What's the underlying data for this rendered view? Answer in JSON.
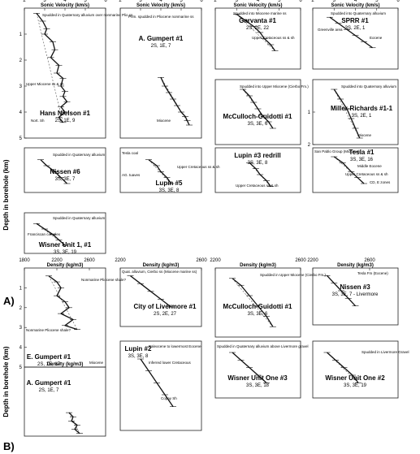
{
  "section_a_label": "A)",
  "section_b_label": "B)",
  "y_axis_label": "Depth in borehole (km)",
  "colors": {
    "trace": "#111111",
    "frame": "#222222",
    "trend": "#555555",
    "grid": "#cfcfcf"
  },
  "chart_data": [
    {
      "type": "line",
      "panel": "A-1",
      "title": "Sonic Velocity (km/s)",
      "well": "Hans Nielson #1",
      "location": "2S, 1E, 9",
      "xlim": [
        2,
        6
      ],
      "ylim": [
        0,
        5
      ],
      "xticks": [
        2,
        3,
        4,
        5,
        6
      ],
      "yticks": [
        1,
        2,
        3,
        4,
        5
      ],
      "annotations": [
        "Spudded in Quaternary alluvium over nonmarine Plio ss",
        "Upper Miocene ss & sh",
        "Nort. Sh"
      ],
      "x": [
        2.6,
        2.9,
        3.1,
        3.0,
        3.4,
        3.5,
        3.3,
        3.7,
        3.6,
        3.9,
        3.8,
        4.0,
        3.9,
        4.1,
        3.8,
        4.0,
        3.7,
        3.9
      ],
      "y": [
        0.2,
        0.5,
        0.8,
        1.0,
        1.3,
        1.6,
        1.9,
        2.2,
        2.5,
        2.7,
        3.0,
        3.2,
        3.4,
        3.6,
        3.8,
        4.0,
        4.2,
        4.4
      ]
    },
    {
      "type": "line",
      "panel": "A-2",
      "title": "Sonic Velocity (km/s)",
      "well": "A. Gumpert #1",
      "location": "2S, 1E, 7",
      "xlim": [
        2,
        6
      ],
      "ylim": [
        0,
        6
      ],
      "xticks": [
        2,
        3,
        4,
        5,
        6
      ],
      "yticks": [],
      "annotations": [
        "Prim. spudded in Pliocene nonmarine ss",
        "Miocene"
      ],
      "x": [
        4.0,
        4.2,
        4.4,
        4.6,
        4.8,
        5.0,
        5.2,
        5.3,
        5.4
      ],
      "y": [
        3.2,
        3.6,
        3.9,
        4.2,
        4.5,
        4.8,
        5.0,
        5.2,
        5.4
      ]
    },
    {
      "type": "line",
      "panel": "A-3",
      "title": "Sonic Velocity (km/s)",
      "well": "Garvanta #1",
      "location": "2S, 2E, 22",
      "xlim": [
        2,
        6
      ],
      "ylim": [
        0,
        2
      ],
      "xticks": [
        2,
        3,
        4,
        5,
        6
      ],
      "yticks": [],
      "annotations": [
        "Spudded into Miocene marine ss",
        "Upper Cretaceous ss & sh"
      ],
      "x": [
        3.0,
        3.4,
        3.8,
        4.1,
        4.3,
        4.6,
        4.8
      ],
      "y": [
        0.2,
        0.4,
        0.6,
        0.8,
        1.0,
        1.2,
        1.4
      ]
    },
    {
      "type": "line",
      "panel": "A-4",
      "title": "Sonic Velocity (km/s)",
      "well": "SPRR #1",
      "location": "3S, 2E, 1",
      "xlim": [
        2,
        6
      ],
      "ylim": [
        0,
        2
      ],
      "xticks": [
        2,
        3,
        4,
        5,
        6
      ],
      "yticks": [],
      "annotations": [
        "Spudded into Quaternary alluvium",
        "Greenville area",
        "Eocene"
      ],
      "x": [
        2.8,
        3.2,
        3.6,
        4.0,
        4.4,
        4.8
      ],
      "y": [
        0.3,
        0.5,
        0.7,
        0.9,
        1.1,
        1.3
      ]
    },
    {
      "type": "line",
      "panel": "A-5",
      "title": "",
      "well": "McCulloch-Guidotti #1",
      "location": "3S, 3E, 6",
      "xlim": [
        2,
        6
      ],
      "ylim": [
        0,
        2
      ],
      "xticks": [],
      "yticks": [],
      "annotations": [
        "Spudded into Upper Miocene (Cierbo Fm.)"
      ],
      "x": [
        3.3,
        3.6,
        3.8,
        4.0,
        4.2,
        4.5,
        4.7
      ],
      "y": [
        0.3,
        0.5,
        0.7,
        0.9,
        1.1,
        1.3,
        1.5
      ]
    },
    {
      "type": "line",
      "panel": "A-6",
      "title": "",
      "well": "Miller-Richards #1-1",
      "location": "3S, 2E, 1",
      "xlim": [
        2,
        6
      ],
      "ylim": [
        0,
        2
      ],
      "xticks": [],
      "yticks": [
        1,
        2
      ],
      "annotations": [
        "Spudded into Quaternary alluvium",
        "Miocene"
      ],
      "x": [
        3.0,
        3.3,
        3.6,
        3.8,
        4.0,
        4.2
      ],
      "y": [
        0.3,
        0.6,
        0.9,
        1.2,
        1.5,
        1.8
      ]
    },
    {
      "type": "line",
      "panel": "A-7",
      "title": "",
      "well": "Nissen #6",
      "location": "3S, 3E, 7",
      "xlim": [
        2,
        6
      ],
      "ylim": [
        0,
        1.5
      ],
      "xticks": [],
      "yticks": [],
      "annotations": [
        "Spudded in Quaternary alluvium"
      ],
      "x": [
        2.8,
        3.1,
        3.5,
        3.8,
        4.1
      ],
      "y": [
        0.4,
        0.6,
        0.8,
        1.0,
        1.2
      ]
    },
    {
      "type": "line",
      "panel": "A-8",
      "title": "",
      "well": "Lupin #5",
      "location": "3S, 3E, 8",
      "xlim": [
        2,
        6
      ],
      "ylim": [
        0,
        1.5
      ],
      "xticks": [],
      "yticks": [],
      "annotations": [
        "Tesla coal",
        "AG. tuaves",
        "Upper Cretaceous ss & sh"
      ],
      "x": [
        3.4,
        3.8,
        4.0,
        4.3,
        4.5
      ],
      "y": [
        0.4,
        0.6,
        0.8,
        1.0,
        1.2
      ]
    },
    {
      "type": "line",
      "panel": "A-9",
      "title": "",
      "well": "Lupin #3 redrill",
      "location": "3S, 3E, 8",
      "xlim": [
        2,
        6
      ],
      "ylim": [
        0,
        1.5
      ],
      "xticks": [],
      "yticks": [],
      "annotations": [
        "Upper Cretaceous ss & sh"
      ],
      "x": [
        3.6,
        3.9,
        4.1,
        4.4,
        4.6
      ],
      "y": [
        0.5,
        0.7,
        0.9,
        1.1,
        1.3
      ]
    },
    {
      "type": "line",
      "panel": "A-10",
      "title": "",
      "well": "Tesla #1",
      "location": "3S, 3E, 16",
      "xlim": [
        2,
        6
      ],
      "ylim": [
        0,
        1.5
      ],
      "xticks": [],
      "yticks": [],
      "annotations": [
        "San Pablo Group (Miocene)",
        "Middle Eocene",
        "Upper Cretaceous ss & sh",
        "CD, E zones"
      ],
      "x": [
        3.0,
        3.4,
        3.8,
        4.1,
        4.4
      ],
      "y": [
        0.3,
        0.5,
        0.8,
        1.0,
        1.2
      ]
    },
    {
      "type": "line",
      "panel": "A-11",
      "title": "",
      "well": "Wisner Unit 1, #1",
      "location": "3S, 3E, 19",
      "xlim": [
        2,
        6
      ],
      "ylim": [
        0,
        1.5
      ],
      "xticks": [],
      "yticks": [],
      "annotations": [
        "Spudded in Quaternary alluvium",
        "Franciscan complex"
      ],
      "x": [
        2.6,
        3.0,
        3.4,
        3.7,
        4.0
      ],
      "y": [
        0.4,
        0.6,
        0.8,
        1.0,
        1.2
      ]
    },
    {
      "type": "line",
      "panel": "B-1",
      "title": "Density (kg/m3)",
      "well": "E. Gumpert #1",
      "location": "2S, 1E, 17",
      "xlim": [
        1800,
        2800
      ],
      "ylim": [
        0,
        5
      ],
      "xticks": [
        1800,
        2200,
        2600
      ],
      "yticks": [
        1,
        2,
        3,
        4,
        5
      ],
      "annotations": [
        "Nonmarine Pliocene shale?",
        "Nonmarine Pliocene shale?",
        "Miocene"
      ],
      "x": [
        2100,
        2200,
        2250,
        2200,
        2300,
        2350,
        2250,
        2400,
        2300,
        2450
      ],
      "y": [
        0.4,
        0.7,
        1.0,
        1.4,
        1.7,
        2.0,
        2.3,
        2.6,
        2.9,
        3.1
      ]
    },
    {
      "type": "line",
      "panel": "B-2",
      "title": "Density (kg/m3)",
      "well": "A. Gumpert #1",
      "location": "2S, 1E, 7",
      "xlim": [
        1800,
        2800
      ],
      "ylim": [
        0,
        5
      ],
      "xticks": [],
      "yticks": [],
      "annotations": [],
      "x": [
        2350,
        2400,
        2380,
        2450,
        2420,
        2480
      ],
      "y": [
        3.3,
        3.6,
        3.9,
        4.2,
        4.5,
        4.8
      ]
    },
    {
      "type": "line",
      "panel": "B-3",
      "title": "Density (kg/m3)",
      "well": "City of Livermore #1",
      "location": "2S, 2E, 27",
      "xlim": [
        2200,
        2600
      ],
      "ylim": [
        0,
        1.5
      ],
      "xticks": [
        2200,
        2600
      ],
      "yticks": [],
      "annotations": [
        "Quat. alluvium, Cierbo ss (Miocene marine ss)"
      ],
      "x": [
        2250,
        2300,
        2350,
        2400,
        2450
      ],
      "y": [
        0.2,
        0.4,
        0.6,
        0.8,
        1.0
      ]
    },
    {
      "type": "line",
      "panel": "B-4",
      "title": "Density (kg/m3)",
      "well": "McCulloch-Guidotti #1",
      "location": "3S, 3E, 6",
      "xlim": [
        2200,
        2600
      ],
      "ylim": [
        0,
        2
      ],
      "xticks": [
        2200,
        2600
      ],
      "yticks": [],
      "annotations": [
        "Spudded in Upper Miocene (Cierbo Fm.)"
      ],
      "x": [
        2280,
        2320,
        2360,
        2400,
        2440,
        2470
      ],
      "y": [
        0.3,
        0.5,
        0.8,
        1.1,
        1.4,
        1.7
      ]
    },
    {
      "type": "line",
      "panel": "B-5",
      "title": "Density (kg/m3)",
      "well": "Nissen #3",
      "location": "3S, 3E, 7 - Livermore",
      "xlim": [
        2200,
        2800
      ],
      "ylim": [
        0,
        1.5
      ],
      "xticks": [
        2200,
        2600
      ],
      "yticks": [],
      "annotations": [
        "Tesla Fm (Eocene)"
      ],
      "x": [
        2300,
        2350,
        2400,
        2450,
        2500
      ],
      "y": [
        0.2,
        0.4,
        0.6,
        0.8,
        1.0
      ]
    },
    {
      "type": "line",
      "panel": "B-6",
      "title": "",
      "well": "Lupin #2",
      "location": "3S, 3E, 8",
      "xlim": [
        2200,
        2600
      ],
      "ylim": [
        0,
        1.5
      ],
      "xticks": [],
      "yticks": [],
      "annotations": [
        "Paleocene to lowermost Eocene",
        "Inferred lower Cretaceous",
        "Copay Sh"
      ],
      "x": [
        2300,
        2340,
        2380,
        2420,
        2460
      ],
      "y": [
        0.3,
        0.5,
        0.7,
        0.9,
        1.1
      ]
    },
    {
      "type": "line",
      "panel": "B-7",
      "title": "",
      "well": "Wisner Unit One #3",
      "location": "3S, 3E, 18",
      "xlim": [
        2200,
        2600
      ],
      "ylim": [
        0,
        1.5
      ],
      "xticks": [],
      "yticks": [],
      "annotations": [
        "Spudded in Quaternary alluvium above Livermore gravel"
      ],
      "x": [
        2280,
        2320,
        2360,
        2400,
        2440
      ],
      "y": [
        0.3,
        0.5,
        0.7,
        0.9,
        1.1
      ]
    },
    {
      "type": "line",
      "panel": "B-8",
      "title": "",
      "well": "Wisner Unit One #2",
      "location": "3S, 3E, 19",
      "xlim": [
        2200,
        2800
      ],
      "ylim": [
        0,
        1.5
      ],
      "xticks": [],
      "yticks": [],
      "annotations": [
        "Spudded in Livermore Gravel"
      ],
      "x": [
        2300,
        2360,
        2420,
        2480,
        2520
      ],
      "y": [
        0.3,
        0.5,
        0.7,
        0.9,
        1.1
      ]
    }
  ]
}
